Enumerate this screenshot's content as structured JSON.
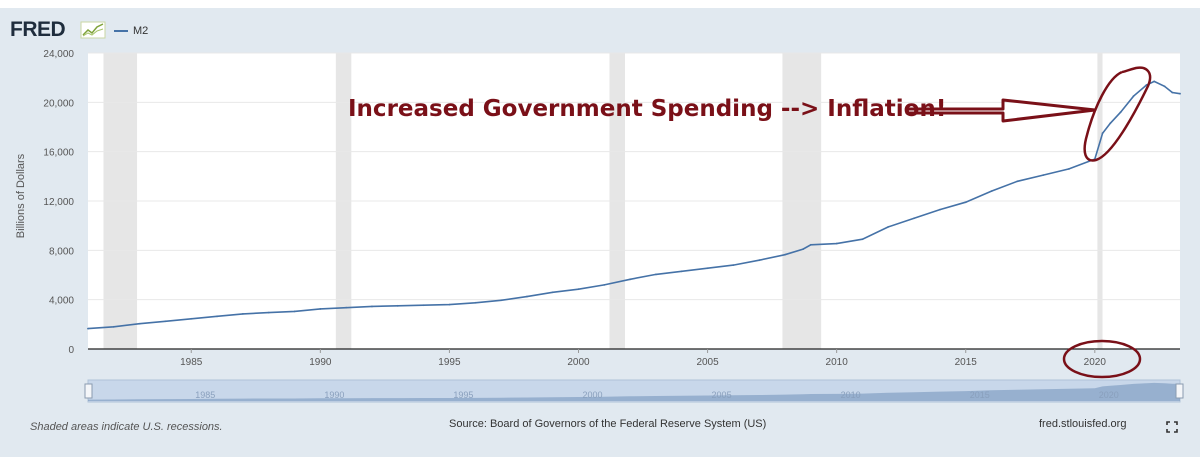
{
  "header": {
    "logo_text": "FRED",
    "series_label": "M2",
    "logo_icon": "chart-line-icon"
  },
  "annotation": {
    "text": "Increased Government Spending --> Inflation!",
    "color": "#7a1018"
  },
  "footer": {
    "recession_note": "Shaded areas indicate U.S. recessions.",
    "source": "Source: Board of Governors of the Federal Reserve System (US)",
    "site": "fred.stlouisfed.org",
    "fullscreen_icon": "fullscreen-icon"
  },
  "colors": {
    "series": "#4572a7",
    "recession": "#e6e6e6",
    "annotation": "#7a1018",
    "navigator": "#b6c9e3"
  },
  "chart_data": {
    "type": "line",
    "title": "",
    "xlabel": "",
    "ylabel": "Billions of Dollars",
    "xlim": [
      1981.0,
      2023.3
    ],
    "ylim": [
      0,
      24000
    ],
    "yticks": [
      0,
      4000,
      8000,
      12000,
      16000,
      20000,
      24000
    ],
    "ytick_labels": [
      "0",
      "4,000",
      "8,000",
      "12,000",
      "16,000",
      "20,000",
      "24,000"
    ],
    "xticks": [
      1985,
      1990,
      1995,
      2000,
      2005,
      2010,
      2015,
      2020
    ],
    "xtick_labels": [
      "1985",
      "1990",
      "1995",
      "2000",
      "2005",
      "2010",
      "2015",
      "2020"
    ],
    "recessions": [
      [
        1981.6,
        1982.9
      ],
      [
        1990.6,
        1991.2
      ],
      [
        2001.2,
        2001.8
      ],
      [
        2007.9,
        2009.4
      ],
      [
        2020.1,
        2020.3
      ]
    ],
    "series": [
      {
        "name": "M2",
        "x": [
          1981.0,
          1982.0,
          1983.0,
          1984.0,
          1985.0,
          1986.0,
          1987.0,
          1988.0,
          1989.0,
          1990.0,
          1991.0,
          1992.0,
          1993.0,
          1994.0,
          1995.0,
          1996.0,
          1997.0,
          1998.0,
          1999.0,
          2000.0,
          2001.0,
          2002.0,
          2003.0,
          2004.0,
          2005.0,
          2006.0,
          2007.0,
          2008.0,
          2008.7,
          2009.0,
          2010.0,
          2011.0,
          2012.0,
          2013.0,
          2014.0,
          2015.0,
          2016.0,
          2017.0,
          2018.0,
          2019.0,
          2020.0,
          2020.3,
          2020.6,
          2021.0,
          2021.5,
          2022.0,
          2022.3,
          2022.7,
          2023.0,
          2023.3
        ],
        "values": [
          1650,
          1800,
          2050,
          2250,
          2450,
          2650,
          2850,
          2950,
          3050,
          3250,
          3350,
          3450,
          3500,
          3550,
          3600,
          3750,
          3950,
          4250,
          4600,
          4850,
          5200,
          5650,
          6050,
          6300,
          6550,
          6800,
          7200,
          7650,
          8100,
          8450,
          8550,
          8900,
          9900,
          10600,
          11300,
          11900,
          12800,
          13600,
          14100,
          14600,
          15400,
          17500,
          18300,
          19200,
          20500,
          21400,
          21700,
          21300,
          20800,
          20700
        ]
      }
    ]
  }
}
